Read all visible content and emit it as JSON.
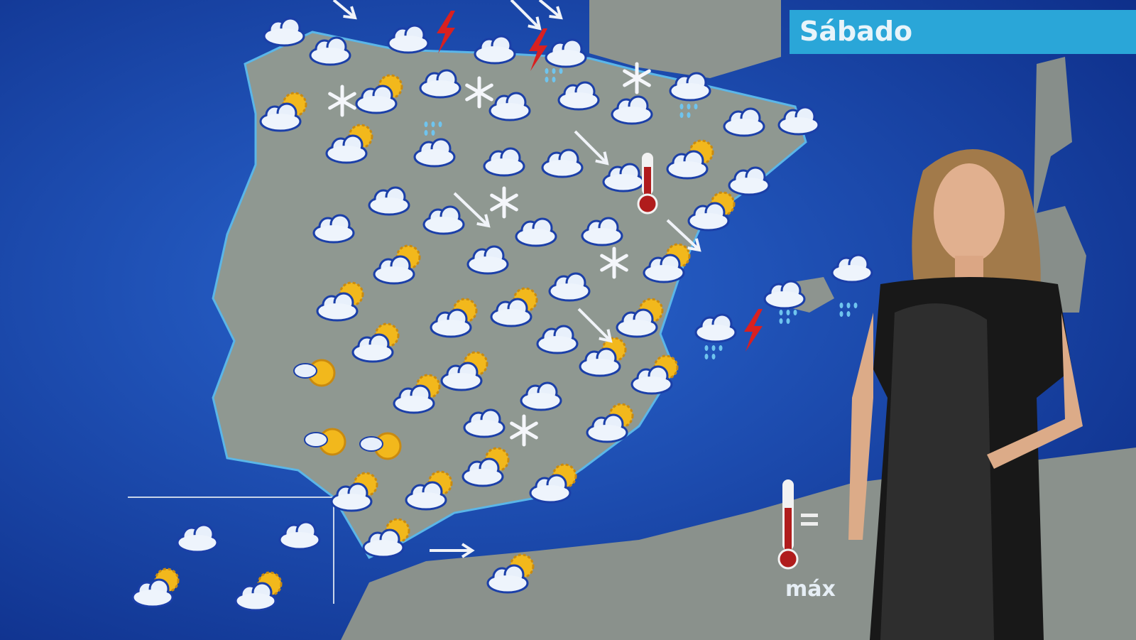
{
  "broadcast": {
    "day_label": "Sábado",
    "max_label": "máx",
    "colors": {
      "sea": "#1a4fb8",
      "land": "#8e9690",
      "banner": "#2aa6d8",
      "lightning": "#d92020",
      "sun": "#f2b81c"
    }
  },
  "map": {
    "region": "Spain",
    "icon_types": [
      "cloud-icon",
      "sun-cloud-icon",
      "snow-icon",
      "lightning-icon",
      "wind-arrow-icon",
      "thermometer-icon",
      "rain-icon"
    ]
  }
}
